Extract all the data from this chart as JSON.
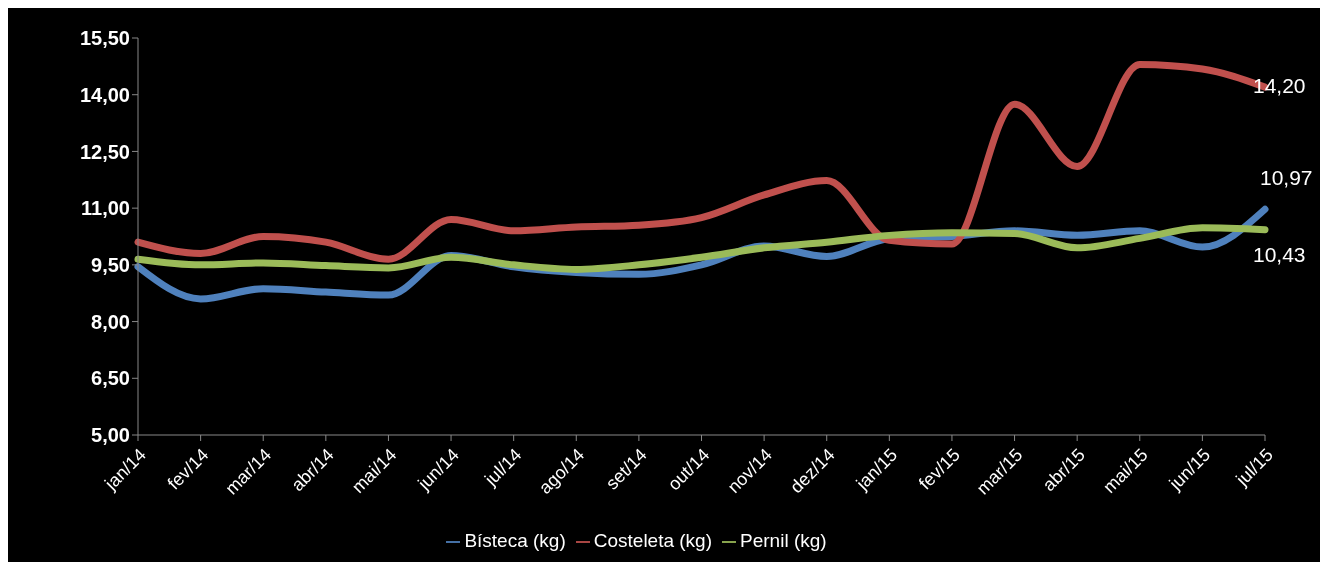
{
  "chart_data": {
    "type": "line",
    "categories": [
      "jan/14",
      "fev/14",
      "mar/14",
      "abr/14",
      "mai/14",
      "jun/14",
      "jul/14",
      "ago/14",
      "set/14",
      "out/14",
      "nov/14",
      "dez/14",
      "jan/15",
      "fev/15",
      "mar/15",
      "abr/15",
      "mai/15",
      "jun/15",
      "jul/15"
    ],
    "series": [
      {
        "name": "Bísteca (kg)",
        "color": "#4f81bd",
        "values": [
          9.45,
          8.6,
          8.87,
          8.78,
          8.7,
          9.75,
          9.45,
          9.3,
          9.25,
          9.5,
          10.0,
          9.72,
          10.19,
          10.25,
          10.4,
          10.28,
          10.4,
          9.97,
          10.97
        ],
        "value_labels": [
          null,
          null,
          null,
          null,
          null,
          null,
          null,
          null,
          null,
          null,
          null,
          null,
          null,
          null,
          null,
          null,
          null,
          null,
          "10,97"
        ]
      },
      {
        "name": "Costeleta (kg)",
        "color": "#c0504d",
        "values": [
          10.1,
          9.8,
          10.25,
          10.1,
          9.65,
          10.7,
          10.4,
          10.5,
          10.55,
          10.75,
          11.35,
          11.73,
          10.15,
          10.05,
          13.75,
          12.1,
          14.8,
          14.68,
          14.2
        ],
        "value_labels": [
          null,
          null,
          null,
          null,
          null,
          null,
          null,
          null,
          null,
          null,
          null,
          null,
          null,
          null,
          null,
          null,
          null,
          null,
          "14,20"
        ]
      },
      {
        "name": "Pernil (kg)",
        "color": "#9bbb59",
        "values": [
          9.65,
          9.5,
          9.55,
          9.48,
          9.42,
          9.7,
          9.5,
          9.38,
          9.5,
          9.7,
          9.95,
          10.1,
          10.28,
          10.35,
          10.33,
          9.95,
          10.2,
          10.48,
          10.43
        ],
        "value_labels": [
          null,
          null,
          null,
          null,
          null,
          null,
          null,
          null,
          null,
          null,
          null,
          null,
          null,
          null,
          null,
          null,
          null,
          null,
          "10,43"
        ]
      }
    ],
    "ylim": [
      5,
      15.5
    ],
    "yticks": [
      {
        "value": 5,
        "label": "5,00"
      },
      {
        "value": 6.5,
        "label": "6,50"
      },
      {
        "value": 8,
        "label": "8,00"
      },
      {
        "value": 9.5,
        "label": "9,50"
      },
      {
        "value": 11,
        "label": "11,00"
      },
      {
        "value": 12.5,
        "label": "12,50"
      },
      {
        "value": 14,
        "label": "14,00"
      },
      {
        "value": 15.5,
        "label": "15,50"
      }
    ],
    "grid": false,
    "legend": "bottom",
    "marker": "none",
    "line_style": "solid"
  }
}
